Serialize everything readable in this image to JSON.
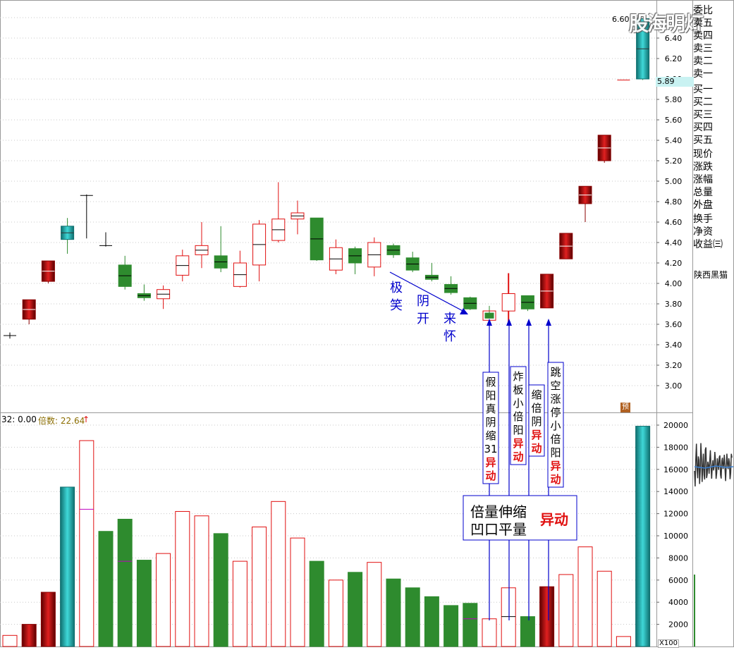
{
  "watermark": "股海明灯",
  "price_badge": "5.89",
  "top_price_label": "6.60",
  "yu_badge": "预",
  "x100_label": "X100",
  "stock_name": "陕西黑猫",
  "volume_legend": {
    "ma_label": "32: 0.00",
    "beishu_label": "倍数: 22.64"
  },
  "side_panel": {
    "order_book": [
      "委比",
      "卖五",
      "卖四",
      "卖三",
      "卖二",
      "卖一",
      "买一",
      "买二",
      "买三",
      "买四",
      "买五"
    ],
    "quote": [
      "现价",
      "涨跌",
      "涨幅",
      "总量",
      "外盘"
    ],
    "extra": [
      "换手",
      "净资",
      "收益㈢"
    ]
  },
  "annotations": {
    "diag_text": [
      "极",
      "笑",
      "阴",
      "开",
      "来",
      "怀"
    ],
    "boxes": [
      {
        "lines": [
          "假",
          "阳",
          "真",
          "阴",
          "缩",
          "31"
        ],
        "red": [
          "异",
          "动"
        ]
      },
      {
        "lines": [
          "炸",
          "板",
          "小",
          "倍",
          "阳"
        ],
        "red": [
          "异",
          "动"
        ]
      },
      {
        "lines": [
          "缩",
          "倍",
          "阴"
        ],
        "red": [
          "异",
          "动"
        ]
      },
      {
        "lines": [
          "跳",
          "空",
          "涨",
          "停",
          "小",
          "倍",
          "阳"
        ],
        "red": [
          "异",
          "动"
        ]
      }
    ],
    "summary_line1": "倍量伸缩",
    "summary_line2": "凹口平量",
    "summary_red": "异动"
  },
  "colors": {
    "up": "#e01010",
    "down": "#2e8b2e",
    "limit_up": "#8b0000",
    "highlight": "#1aa7a7",
    "annotation": "#0000cc"
  },
  "chart_data": [
    {
      "type": "candlestick",
      "ylim": [
        2.8,
        6.7
      ],
      "y_ticks": [
        3.0,
        3.2,
        3.4,
        3.6,
        3.8,
        4.0,
        4.2,
        4.4,
        4.6,
        4.8,
        5.0,
        5.2,
        5.4,
        5.6,
        5.8,
        6.0,
        6.2,
        6.4,
        6.6
      ],
      "candles": [
        {
          "o": 3.49,
          "h": 3.52,
          "l": 3.46,
          "c": 3.49,
          "style": "doji"
        },
        {
          "o": 3.65,
          "h": 3.84,
          "l": 3.6,
          "c": 3.84,
          "style": "limit"
        },
        {
          "o": 4.02,
          "h": 4.22,
          "l": 4.0,
          "c": 4.22,
          "style": "limit"
        },
        {
          "o": 4.43,
          "h": 4.64,
          "l": 4.29,
          "c": 4.56,
          "style": "cyan"
        },
        {
          "o": 4.86,
          "h": 4.87,
          "l": 4.44,
          "c": 4.86,
          "style": "doji"
        },
        {
          "o": 4.37,
          "h": 4.5,
          "l": 4.36,
          "c": 4.37,
          "style": "doji"
        },
        {
          "o": 4.18,
          "h": 4.27,
          "l": 3.94,
          "c": 3.97,
          "style": "down"
        },
        {
          "o": 3.9,
          "h": 3.99,
          "l": 3.83,
          "c": 3.86,
          "style": "down"
        },
        {
          "o": 3.85,
          "h": 3.98,
          "l": 3.75,
          "c": 3.94,
          "style": "up"
        },
        {
          "o": 4.08,
          "h": 4.33,
          "l": 4.02,
          "c": 4.27,
          "style": "up"
        },
        {
          "o": 4.28,
          "h": 4.6,
          "l": 4.15,
          "c": 4.37,
          "style": "up"
        },
        {
          "o": 4.27,
          "h": 4.56,
          "l": 4.11,
          "c": 4.15,
          "style": "down"
        },
        {
          "o": 3.97,
          "h": 4.32,
          "l": 3.96,
          "c": 4.2,
          "style": "up"
        },
        {
          "o": 4.18,
          "h": 4.62,
          "l": 4.02,
          "c": 4.58,
          "style": "up"
        },
        {
          "o": 4.42,
          "h": 4.99,
          "l": 4.4,
          "c": 4.63,
          "style": "up"
        },
        {
          "o": 4.63,
          "h": 4.81,
          "l": 4.48,
          "c": 4.69,
          "style": "up"
        },
        {
          "o": 4.64,
          "h": 4.64,
          "l": 4.22,
          "c": 4.23,
          "style": "down"
        },
        {
          "o": 4.13,
          "h": 4.43,
          "l": 4.09,
          "c": 4.35,
          "style": "up"
        },
        {
          "o": 4.34,
          "h": 4.36,
          "l": 4.09,
          "c": 4.2,
          "style": "down"
        },
        {
          "o": 4.16,
          "h": 4.45,
          "l": 4.07,
          "c": 4.4,
          "style": "up"
        },
        {
          "o": 4.37,
          "h": 4.39,
          "l": 4.25,
          "c": 4.28,
          "style": "down"
        },
        {
          "o": 4.25,
          "h": 4.31,
          "l": 4.11,
          "c": 4.13,
          "style": "down"
        },
        {
          "o": 4.08,
          "h": 4.2,
          "l": 4.02,
          "c": 4.04,
          "style": "down"
        },
        {
          "o": 3.99,
          "h": 4.07,
          "l": 3.89,
          "c": 3.91,
          "style": "down"
        },
        {
          "o": 3.86,
          "h": 3.87,
          "l": 3.74,
          "c": 3.75,
          "style": "down"
        },
        {
          "o": 3.71,
          "h": 3.78,
          "l": 3.66,
          "c": 3.66,
          "style": "down_small"
        },
        {
          "o": 3.73,
          "h": 4.1,
          "l": 3.62,
          "c": 3.9,
          "style": "up_redwick"
        },
        {
          "o": 3.88,
          "h": 3.88,
          "l": 3.73,
          "c": 3.75,
          "style": "down"
        },
        {
          "o": 3.76,
          "h": 4.09,
          "l": 3.76,
          "c": 4.09,
          "style": "limit"
        },
        {
          "o": 4.24,
          "h": 4.49,
          "l": 4.24,
          "c": 4.49,
          "style": "limit"
        },
        {
          "o": 4.78,
          "h": 4.95,
          "l": 4.6,
          "c": 4.95,
          "style": "limit"
        },
        {
          "o": 5.2,
          "h": 5.45,
          "l": 5.18,
          "c": 5.45,
          "style": "limit"
        },
        {
          "o": 5.99,
          "h": 5.99,
          "l": 5.99,
          "c": 5.99,
          "style": "doji"
        },
        {
          "o": 6.0,
          "h": 6.59,
          "l": 5.99,
          "c": 6.59,
          "style": "cyan"
        }
      ]
    },
    {
      "type": "bar",
      "ylim": [
        0,
        21000
      ],
      "y_ticks": [
        2000,
        4000,
        6000,
        8000,
        10000,
        12000,
        14000,
        16000,
        18000,
        20000
      ],
      "values": [
        1000,
        2000,
        4900,
        14400,
        18600,
        10400,
        11500,
        7800,
        8400,
        12200,
        11800,
        10200,
        7700,
        10800,
        13100,
        9800,
        7700,
        6000,
        6700,
        7600,
        6100,
        5300,
        4500,
        3700,
        3900,
        2500,
        5300,
        2700,
        5400,
        6500,
        9000,
        6800,
        900,
        19900
      ],
      "styles": [
        "up",
        "limit",
        "limit",
        "cyan",
        "up",
        "down",
        "down",
        "down",
        "up",
        "up",
        "up",
        "down",
        "up",
        "up",
        "up",
        "up",
        "down",
        "up",
        "down",
        "up",
        "down",
        "down",
        "down",
        "down",
        "down",
        "up",
        "up",
        "down",
        "limit",
        "up",
        "up",
        "up",
        "up",
        "cyan"
      ]
    }
  ]
}
